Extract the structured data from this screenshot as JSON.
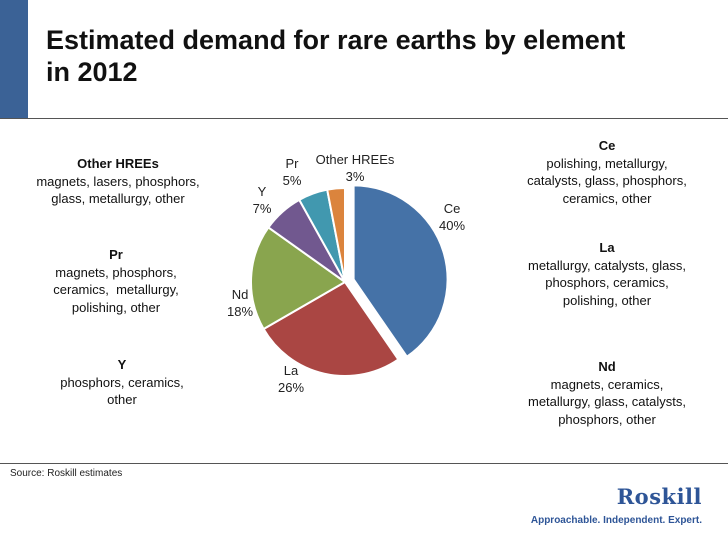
{
  "title": {
    "line1": "Estimated demand for rare earths by element",
    "line2": "in 2012"
  },
  "chart_data": {
    "type": "pie",
    "title": "Estimated demand for rare earths by element in 2012",
    "slices": [
      {
        "label": "Ce",
        "value": 40,
        "pct_text": "40%",
        "color": "#4572a7"
      },
      {
        "label": "La",
        "value": 26,
        "pct_text": "26%",
        "color": "#aa4643"
      },
      {
        "label": "Nd",
        "value": 18,
        "pct_text": "18%",
        "color": "#89a54e"
      },
      {
        "label": "Y",
        "value": 7,
        "pct_text": "7%",
        "color": "#71588f"
      },
      {
        "label": "Pr",
        "value": 5,
        "pct_text": "5%",
        "color": "#4198af"
      },
      {
        "label": "Other HREEs",
        "value": 3,
        "pct_text": "3%",
        "color": "#db843d"
      }
    ],
    "exploded_slice": "Ce",
    "start_angle": "12 o'clock, clockwise"
  },
  "descriptions": {
    "other_hrees": {
      "element": "Other HREEs",
      "lines": [
        "magnets, lasers, phosphors,",
        "glass, metallurgy, other"
      ]
    },
    "pr": {
      "element": "Pr",
      "lines": [
        "magnets, phosphors,",
        "ceramics,  metallurgy,",
        "polishing, other"
      ]
    },
    "y": {
      "element": "Y",
      "lines": [
        "phosphors, ceramics,",
        "other"
      ]
    },
    "ce": {
      "element": "Ce",
      "lines": [
        "polishing, metallurgy,",
        "catalysts, glass, phosphors,",
        "ceramics, other"
      ]
    },
    "la": {
      "element": "La",
      "lines": [
        "metallurgy, catalysts, glass,",
        "phosphors, ceramics,",
        "polishing, other"
      ]
    },
    "nd": {
      "element": "Nd",
      "lines": [
        "magnets, ceramics,",
        "metallurgy, glass, catalysts,",
        "phosphors, other"
      ]
    }
  },
  "footer": {
    "source": "Source: Roskill estimates",
    "logo": "Roskill",
    "tagline": "Approachable. Independent. Expert."
  },
  "colors": {
    "accent_bar": "#3b6296",
    "brand": "#2e5597"
  }
}
